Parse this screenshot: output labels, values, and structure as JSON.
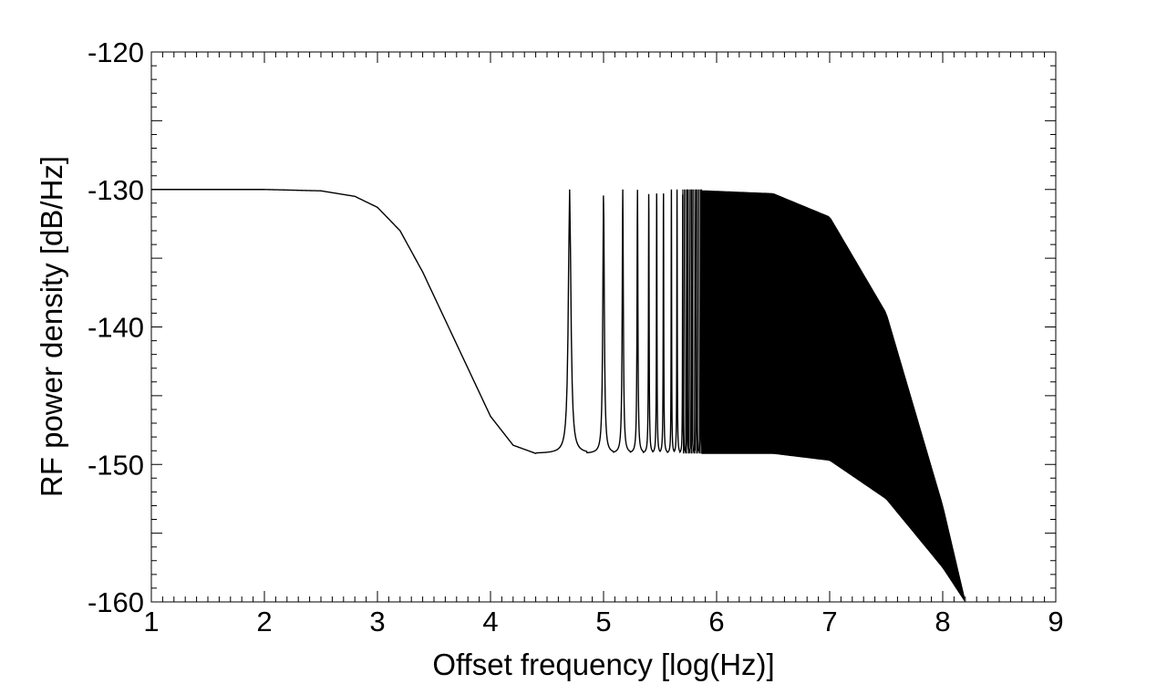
{
  "chart_data": {
    "type": "line",
    "title": "",
    "xlabel": "Offset frequency [log(Hz)]",
    "ylabel": "RF power density [dB/Hz]",
    "xlim": [
      1,
      9
    ],
    "ylim": [
      -160,
      -120
    ],
    "x_ticks": [
      1,
      2,
      3,
      4,
      5,
      6,
      7,
      8,
      9
    ],
    "y_ticks": [
      -160,
      -150,
      -140,
      -130,
      -120
    ],
    "x_tick_labels": [
      "1",
      "2",
      "3",
      "4",
      "5",
      "6",
      "7",
      "8",
      "9"
    ],
    "y_tick_labels": [
      "-160",
      "-150",
      "-140",
      "-130",
      "-120"
    ],
    "grid": false,
    "legend": "none",
    "color": "#000000",
    "series": [
      {
        "x": [
          1.0,
          2.0,
          2.5,
          2.8,
          3.0,
          3.2,
          3.4,
          3.6,
          3.8,
          4.0,
          4.2,
          4.4,
          4.7,
          4.87,
          5.0,
          5.17,
          5.3,
          5.4,
          5.5,
          5.57,
          5.64,
          5.7,
          5.75,
          5.8,
          5.85,
          5.9,
          6.5,
          7.0,
          7.5,
          8.0,
          8.2
        ],
        "upper_envelope": [
          -130.0,
          -130.0,
          -130.1,
          -130.5,
          -131.3,
          -133.0,
          -136.0,
          -139.5,
          -143.0,
          -146.5,
          -148.6,
          -149.2,
          -130.1,
          -149.2,
          -130.1,
          -130.1,
          -130.1,
          -130.1,
          -130.1,
          -130.1,
          -130.1,
          -130.1,
          -130.1,
          -130.1,
          -130.1,
          -130.1,
          -130.3,
          -132.0,
          -139.0,
          -153.0,
          -160.0
        ],
        "lower_envelope": [
          -130.0,
          -130.0,
          -130.1,
          -130.5,
          -131.3,
          -133.0,
          -136.0,
          -139.5,
          -143.0,
          -146.5,
          -148.6,
          -149.2,
          -149.2,
          -149.2,
          -149.2,
          -149.2,
          -149.2,
          -149.2,
          -149.2,
          -149.2,
          -149.2,
          -149.2,
          -149.2,
          -149.2,
          -149.2,
          -149.2,
          -149.2,
          -149.7,
          -152.5,
          -157.5,
          -160.0
        ],
        "resonance_peaks_x": [
          4.7,
          5.0,
          5.17,
          5.3,
          5.4,
          5.47,
          5.53,
          5.6,
          5.65,
          5.7,
          5.74,
          5.78,
          5.82,
          5.86
        ],
        "peak_level": -130.0,
        "trough_level": -149.2
      }
    ]
  }
}
